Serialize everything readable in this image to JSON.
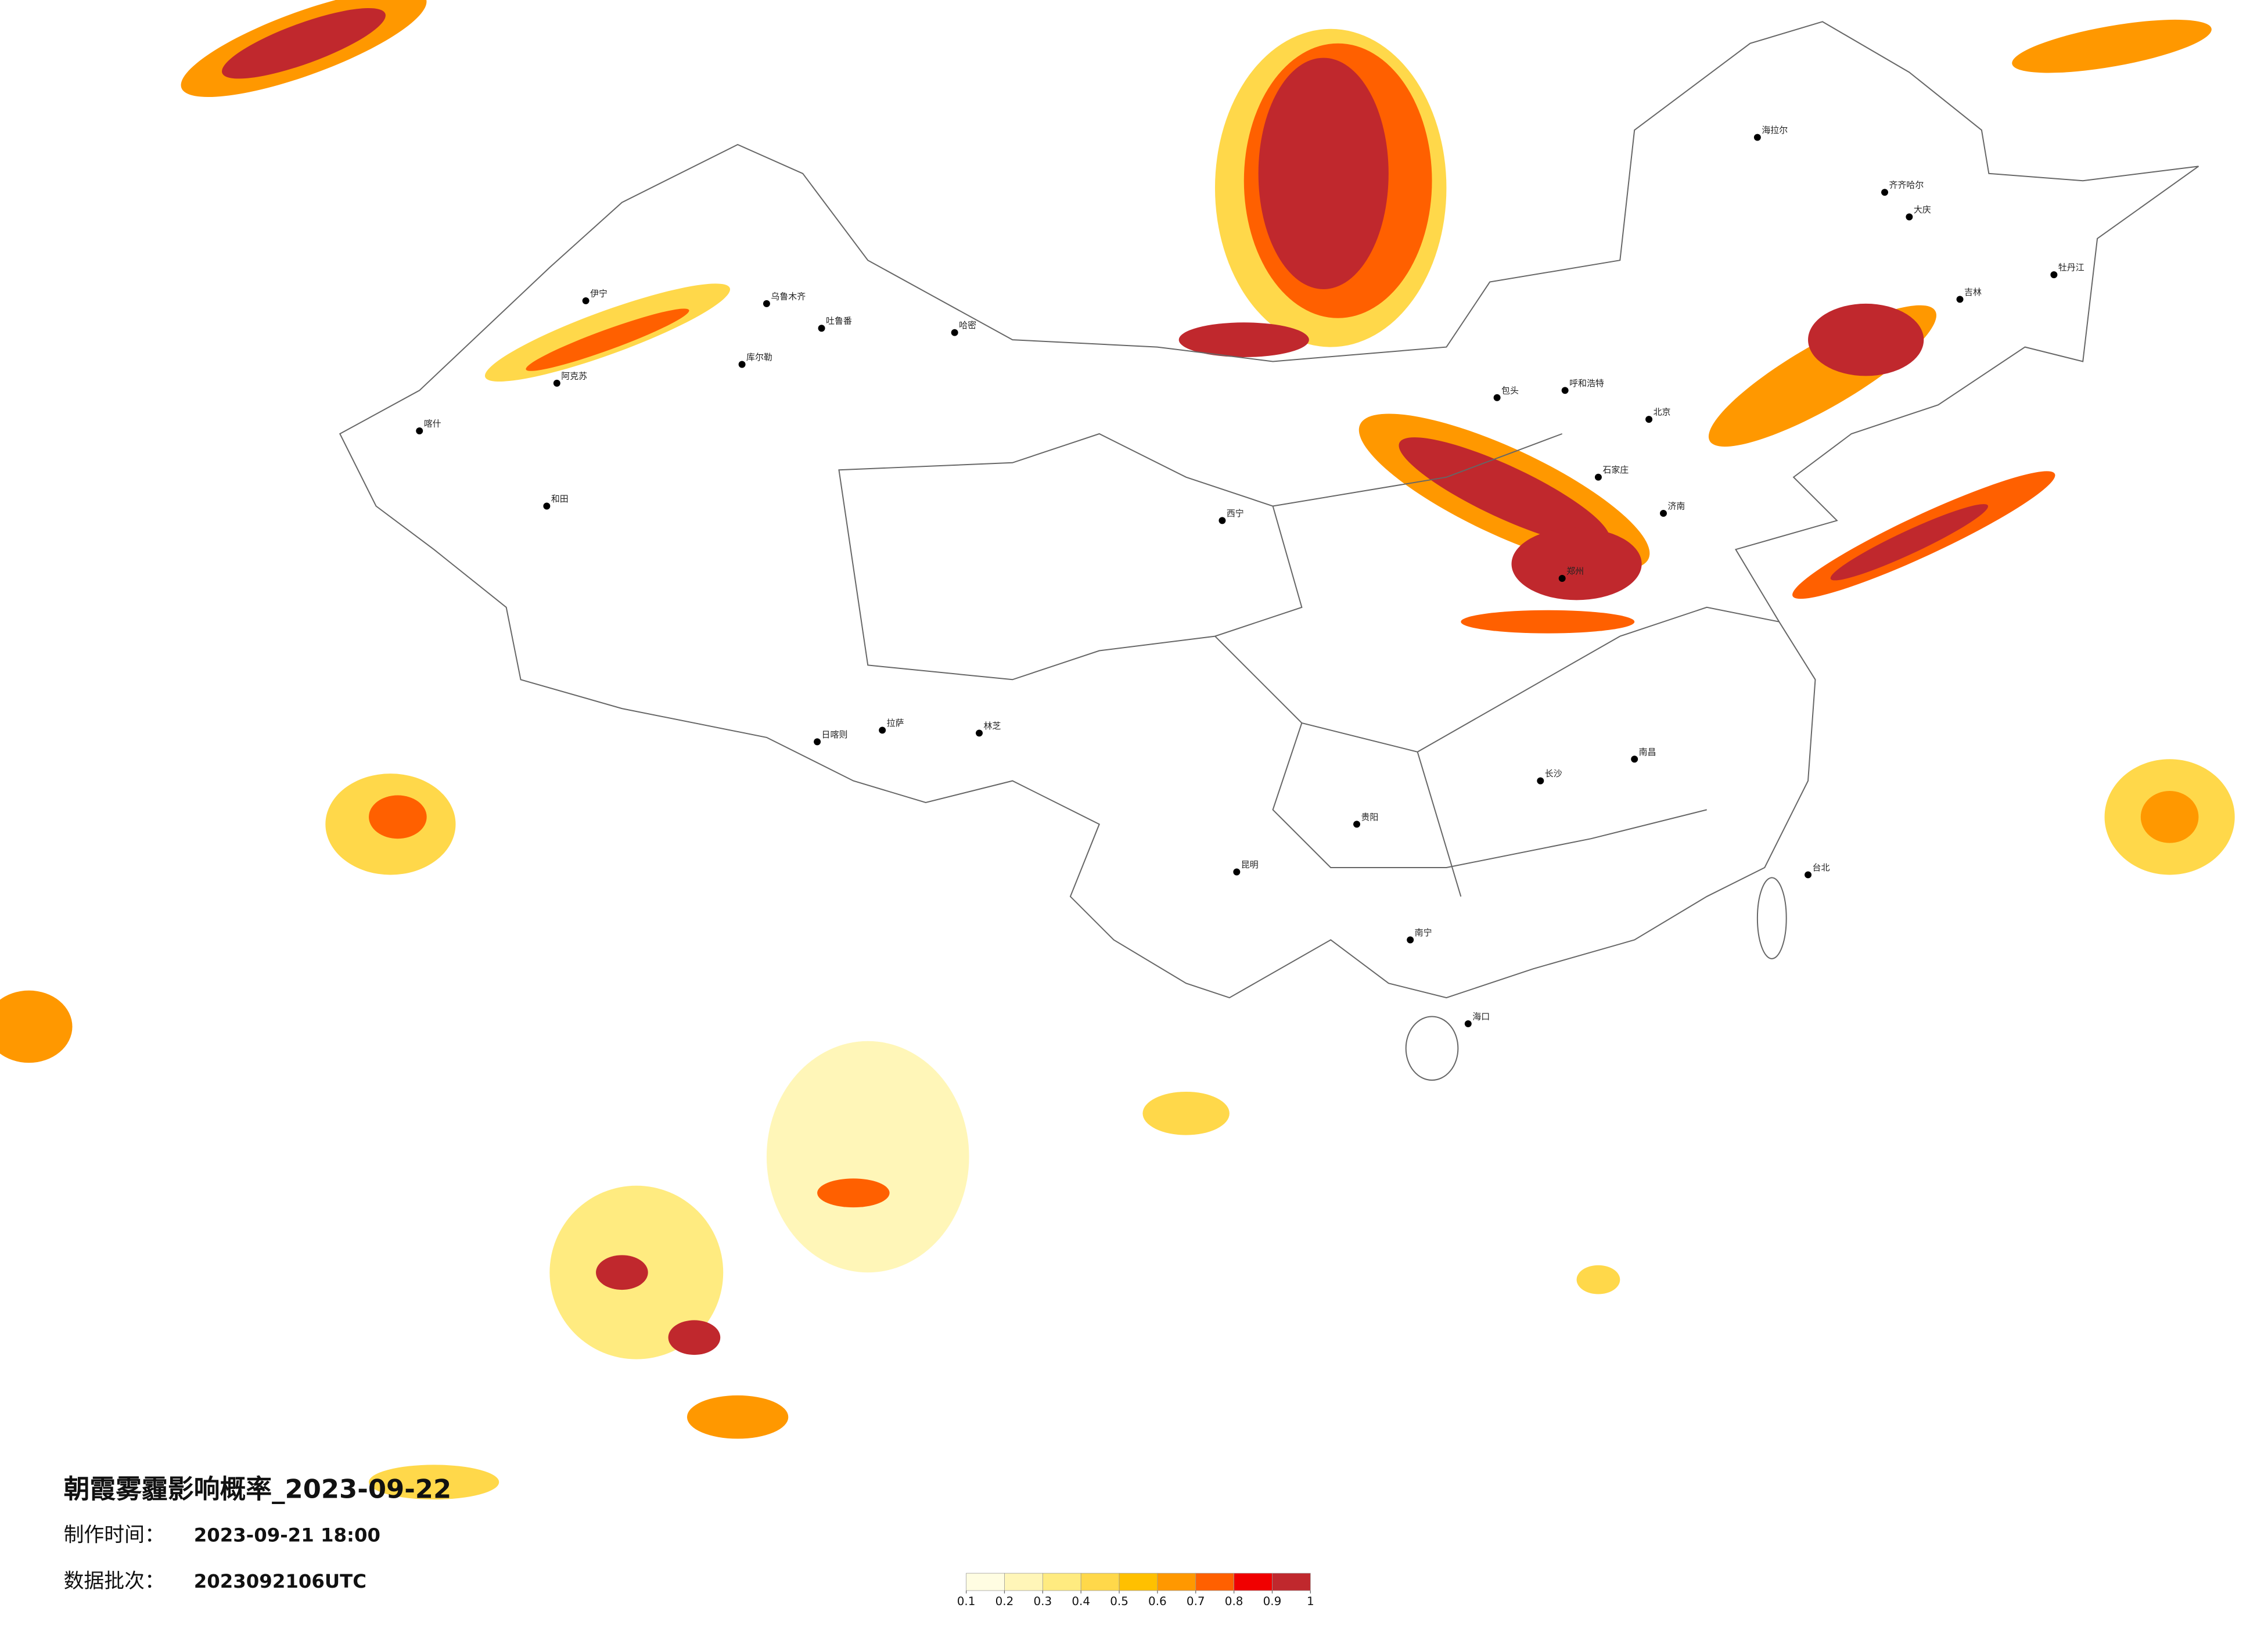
{
  "title": "朝霞雾霾影响概率_2023-09-22",
  "production_time": {
    "label": "制作时间：",
    "value": "2023-09-21 18:00"
  },
  "batch": {
    "label": "数据批次：",
    "value": "2023092106UTC"
  },
  "legend": {
    "ticks": [
      0.1,
      0.2,
      0.3,
      0.4,
      0.5,
      0.6,
      0.7,
      0.8,
      0.9,
      1
    ],
    "colors": [
      "#fffde2",
      "#fff6b8",
      "#ffeb80",
      "#ffd84a",
      "#ffc000",
      "#ff9800",
      "#ff6000",
      "#f00000",
      "#c0282d"
    ]
  },
  "cities": [
    "哈密",
    "和田",
    "喀什",
    "阿克苏",
    "伊宁",
    "库尔勒",
    "吐鲁番",
    "乌鲁木齐",
    "拉萨",
    "日喀则",
    "林芝",
    "西宁",
    "昆明",
    "贵阳",
    "呼和浩特",
    "包头",
    "北京",
    "石家庄",
    "吉林",
    "齐齐哈尔",
    "海拉尔",
    "南宁",
    "海口",
    "台北",
    "南昌",
    "长沙",
    "郑州",
    "济南",
    "大庆",
    "牡丹江"
  ]
}
